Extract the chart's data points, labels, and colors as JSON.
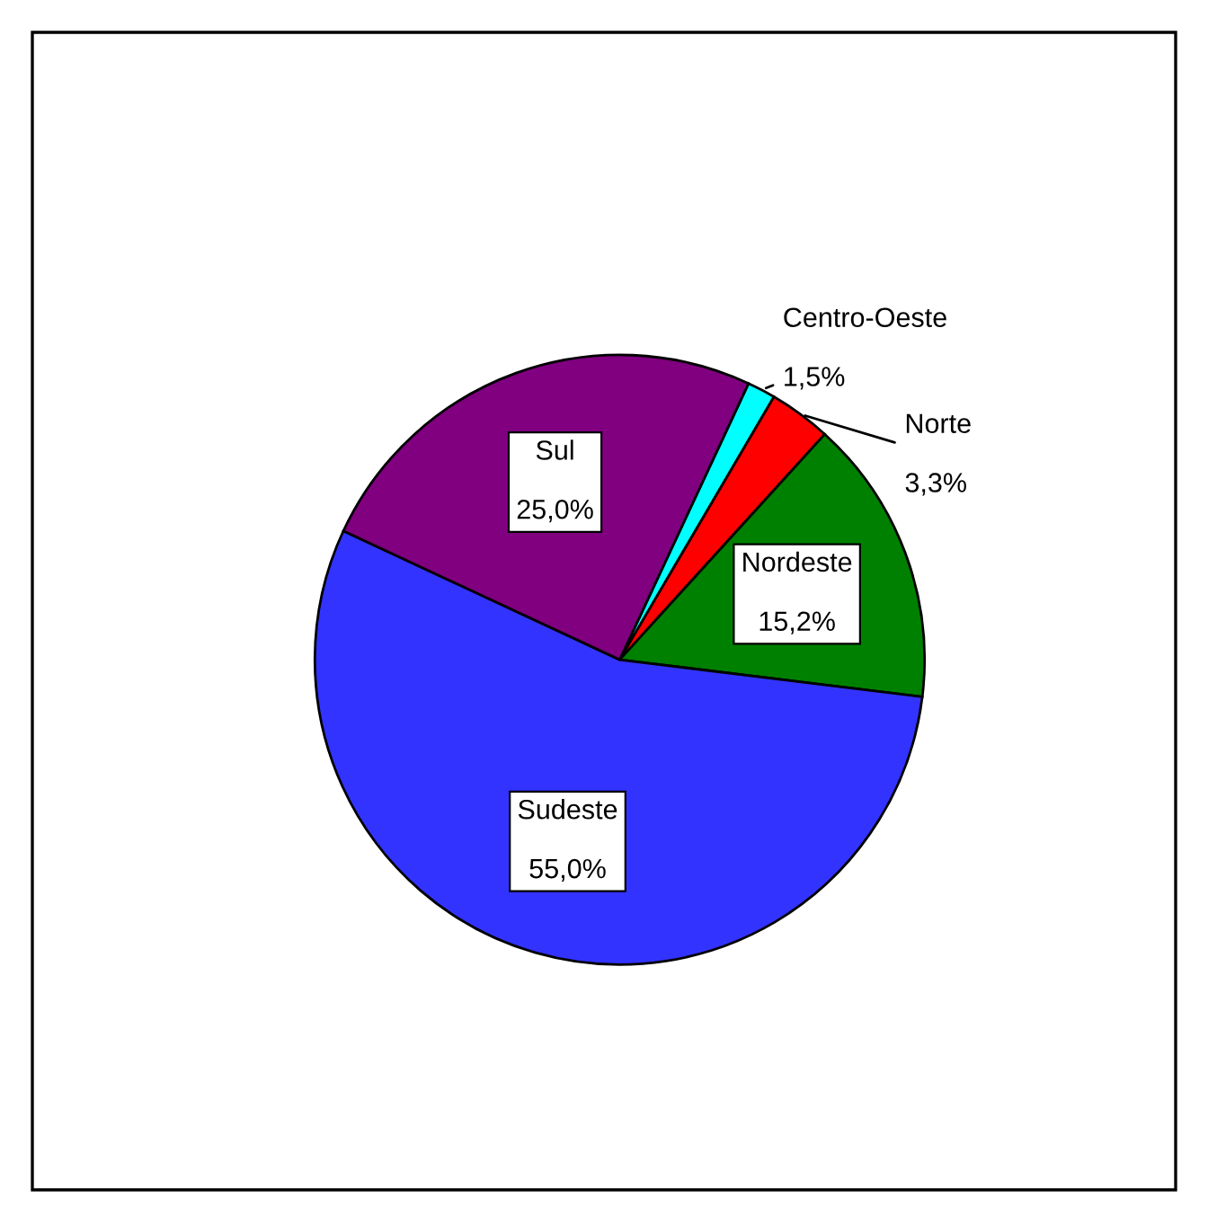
{
  "chart_data": {
    "type": "pie",
    "categories": [
      "Centro-Oeste",
      "Norte",
      "Nordeste",
      "Sudeste",
      "Sul"
    ],
    "values": [
      1.5,
      3.3,
      15.2,
      55.0,
      25.0
    ],
    "colors": [
      "#00ffff",
      "#ff0000",
      "#008000",
      "#3333ff",
      "#800080"
    ],
    "value_labels": [
      "1,5%",
      "3,3%",
      "15,2%",
      "55,0%",
      "25,0%"
    ],
    "legend": false
  }
}
